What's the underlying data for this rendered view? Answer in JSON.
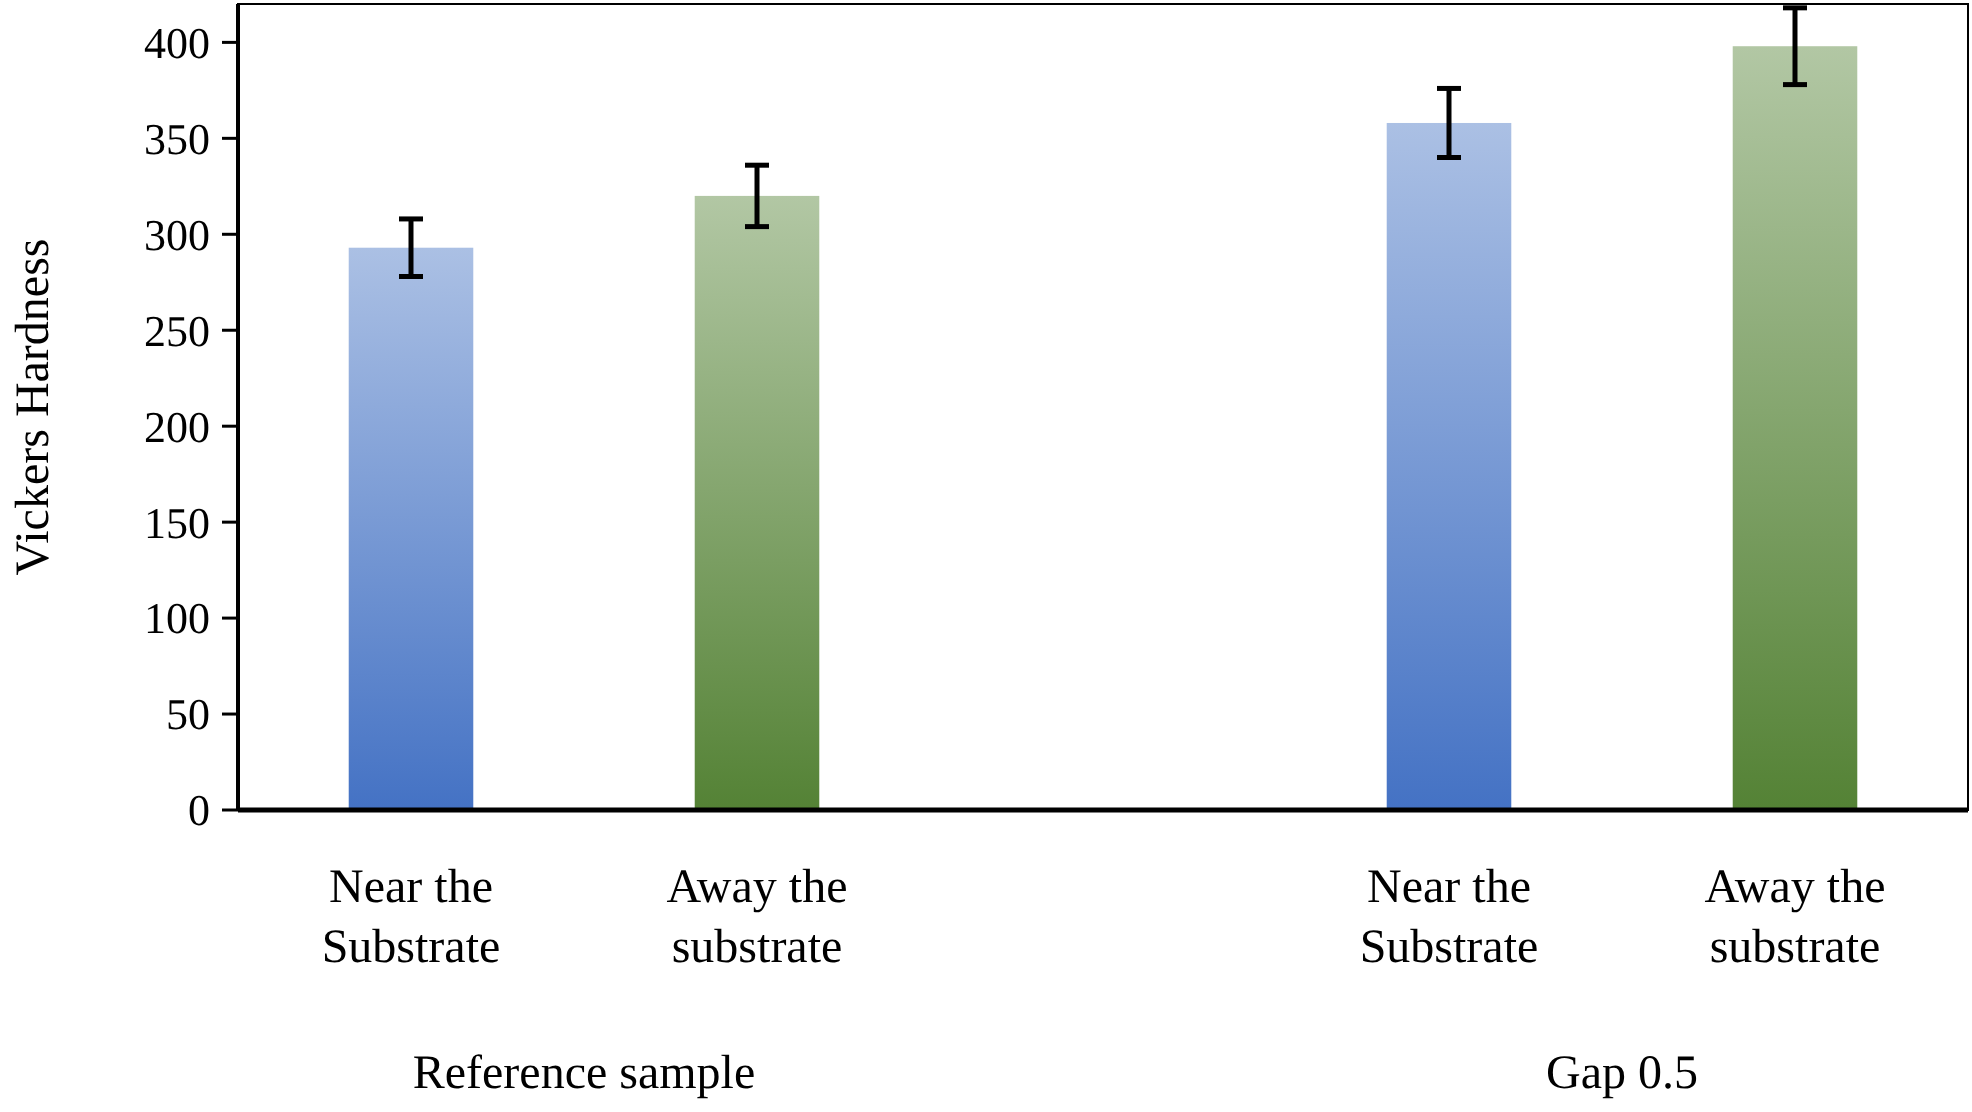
{
  "chart_data": {
    "type": "bar",
    "ylabel": "Vickers Hardness",
    "categories": [
      "Near the Substrate",
      "Away the substrate",
      null,
      "Near the Substrate",
      "Away the substrate"
    ],
    "values": [
      293,
      320,
      null,
      358,
      398
    ],
    "errors": [
      15,
      16,
      null,
      18,
      20
    ],
    "colors": [
      "#4472c4",
      "#548235",
      null,
      "#4472c4",
      "#548235"
    ],
    "ylim": [
      0,
      420
    ],
    "yticks": [
      0,
      50,
      100,
      150,
      200,
      250,
      300,
      350,
      400
    ],
    "grid": false,
    "annotations": [
      "Reference sample",
      "Gap 0.5"
    ]
  }
}
